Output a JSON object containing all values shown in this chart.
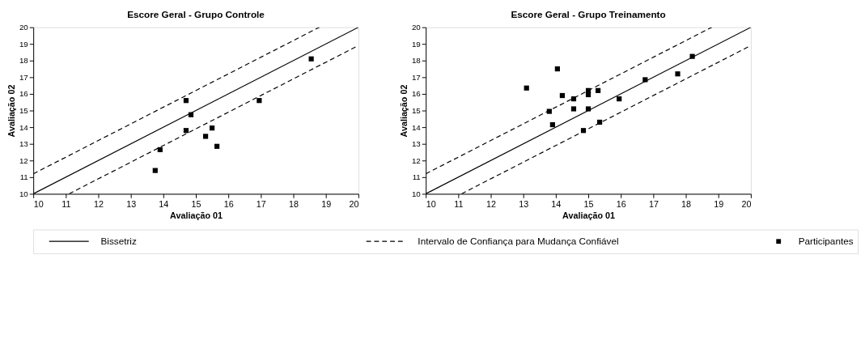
{
  "chart_data": [
    {
      "type": "scatter",
      "title": "Escore Geral - Grupo Controle",
      "xlabel": "Avaliação 01",
      "ylabel": "Avaliação 02",
      "xlim": [
        10,
        20
      ],
      "ylim": [
        10,
        20
      ],
      "xticks": [
        10,
        11,
        12,
        13,
        14,
        15,
        16,
        17,
        18,
        19,
        20
      ],
      "yticks": [
        10,
        11,
        12,
        13,
        14,
        15,
        16,
        17,
        18,
        19,
        20
      ],
      "grid": false,
      "legend": "bottom",
      "series": [
        {
          "name": "Bissetriz",
          "type": "line",
          "line_style": "solid",
          "marker": "none",
          "color": "#000000",
          "x": [
            10,
            20
          ],
          "values": [
            10,
            20
          ]
        },
        {
          "name": "Intervalo de Confiança para Mudança Confiável",
          "type": "line",
          "line_style": "dashed",
          "marker": "none",
          "color": "#000000",
          "x": [
            10,
            18.8,
            null,
            11.1,
            20
          ],
          "values": [
            11.2,
            20,
            null,
            10,
            18.9
          ]
        },
        {
          "name": "Participantes",
          "type": "scatter",
          "marker": "square",
          "color": "#000000",
          "x": [
            13.75,
            13.9,
            14.7,
            14.85,
            14.7,
            15.3,
            15.5,
            15.65,
            16.95,
            18.55
          ],
          "values": [
            11.4,
            12.65,
            15.6,
            14.75,
            13.8,
            13.45,
            13.95,
            12.85,
            15.6,
            18.1
          ]
        }
      ]
    },
    {
      "type": "scatter",
      "title": "Escore Geral - Grupo Treinamento",
      "xlabel": "Avaliação 01",
      "ylabel": "Avaliação 02",
      "xlim": [
        10,
        20
      ],
      "ylim": [
        10,
        20
      ],
      "xticks": [
        10,
        11,
        12,
        13,
        14,
        15,
        16,
        17,
        18,
        19,
        20
      ],
      "yticks": [
        10,
        11,
        12,
        13,
        14,
        15,
        16,
        17,
        18,
        19,
        20
      ],
      "grid": false,
      "legend": "bottom",
      "series": [
        {
          "type": "line",
          "line_style": "solid",
          "marker": "none",
          "color": "#000000",
          "x": [
            10,
            20
          ],
          "values": [
            10,
            20
          ]
        },
        {
          "type": "line",
          "line_style": "dashed",
          "marker": "none",
          "color": "#000000",
          "x": [
            10,
            18.8,
            null,
            11.1,
            20
          ],
          "values": [
            11.2,
            20,
            null,
            10,
            18.9
          ]
        },
        {
          "type": "scatter",
          "marker": "square",
          "color": "#000000",
          "x": [
            13.1,
            14.05,
            14.2,
            13.8,
            13.9,
            14.55,
            14.55,
            15,
            15,
            15,
            15.3,
            14.85,
            15.35,
            15.95,
            16.75,
            17.75,
            18.2
          ],
          "values": [
            16.35,
            17.5,
            15.9,
            14.95,
            14.15,
            15.7,
            15.1,
            16.2,
            15.95,
            15.1,
            16.2,
            13.8,
            14.3,
            15.7,
            16.85,
            17.2,
            18.25
          ]
        }
      ]
    }
  ]
}
